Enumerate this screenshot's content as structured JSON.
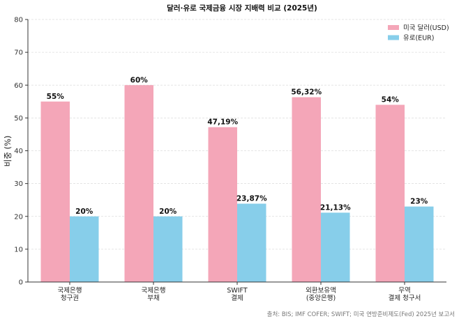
{
  "chart_data": {
    "type": "bar",
    "title": "달러·유로 국제금융 시장 지배력 비교 (2025년)",
    "xlabel": "",
    "ylabel": "비중 (%)",
    "ylim": [
      0,
      80
    ],
    "yticks": [
      0,
      10,
      20,
      30,
      40,
      50,
      60,
      70,
      80
    ],
    "grid": true,
    "legend_position": "top-right",
    "categories": [
      [
        "국제은행",
        "청구권"
      ],
      [
        "국제은행",
        "부채"
      ],
      [
        "SWIFT",
        "결제"
      ],
      [
        "외환보유액",
        "(중앙은행)"
      ],
      [
        "무역",
        "결제 청구서"
      ]
    ],
    "series": [
      {
        "name": "미국 달러(USD)",
        "color": "#f4a6b8",
        "values": [
          55,
          60,
          47.19,
          56.32,
          54
        ],
        "labels": [
          "55%",
          "60%",
          "47,19%",
          "56,32%",
          "54%"
        ]
      },
      {
        "name": "유로(EUR)",
        "color": "#87ceea",
        "values": [
          20,
          20,
          23.87,
          21.13,
          23
        ],
        "labels": [
          "20%",
          "20%",
          "23,87%",
          "21,13%",
          "23%"
        ]
      }
    ],
    "source": "출처: BIS; IMF COFER; SWIFT; 미국 연방준비제도(Fed) 2025년 보고서"
  }
}
